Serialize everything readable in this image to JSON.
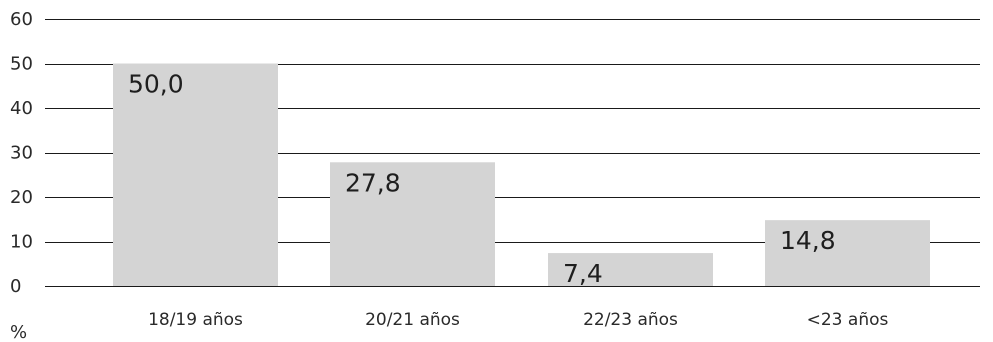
{
  "chart_data": {
    "type": "bar",
    "categories": [
      "18/19 años",
      "20/21 años",
      "22/23 años",
      "<23 años"
    ],
    "values": [
      50.0,
      27.8,
      7.4,
      14.8
    ],
    "data_labels": [
      "50,0",
      "27,8",
      "7,4",
      "14,8"
    ],
    "y_ticks": [
      0,
      10,
      20,
      30,
      40,
      50,
      60
    ],
    "y_tick_labels": [
      "0",
      "10",
      "20",
      "30",
      "40",
      "50",
      "60"
    ],
    "ylim": [
      0,
      60
    ],
    "unit_label": "%",
    "title": "",
    "xlabel": "",
    "ylabel": "",
    "grid": true,
    "bar_color": "#d4d4d4",
    "grid_color": "#1a1a1a"
  }
}
